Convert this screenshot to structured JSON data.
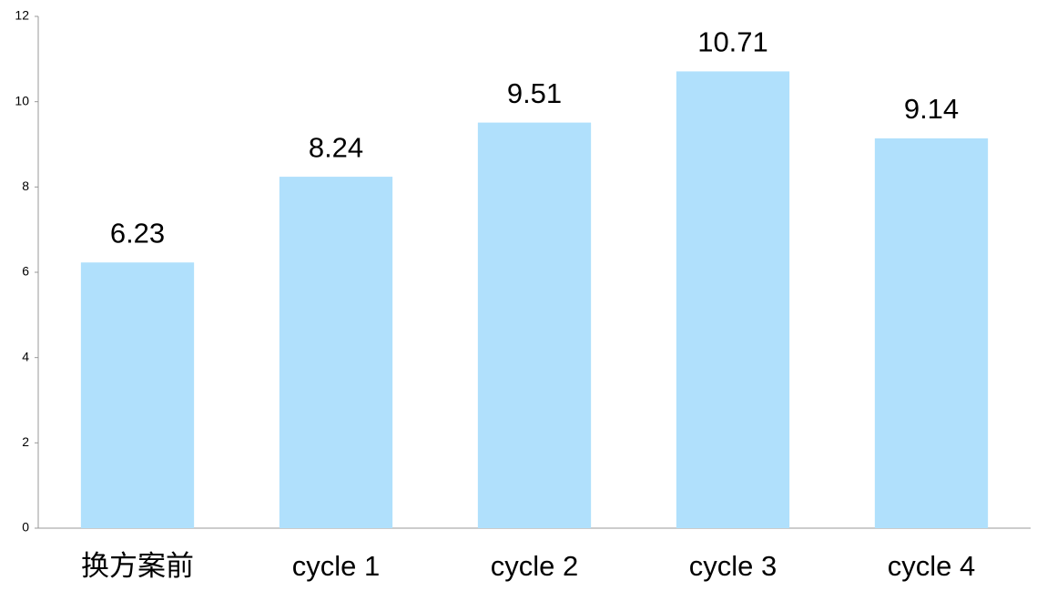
{
  "chart_data": {
    "type": "bar",
    "categories": [
      "换方案前",
      "cycle 1",
      "cycle 2",
      "cycle 3",
      "cycle 4"
    ],
    "values": [
      6.23,
      8.24,
      9.51,
      10.71,
      9.14
    ],
    "color": "#b0e0fc",
    "ylim": [
      0,
      12
    ],
    "yticks": [
      0,
      2,
      4,
      6,
      8,
      10,
      12
    ],
    "grid": false
  }
}
